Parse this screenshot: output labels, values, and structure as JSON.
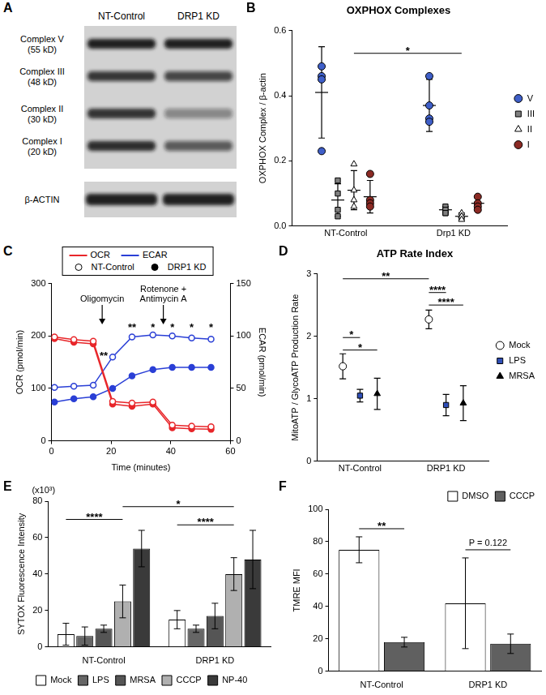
{
  "blot": {
    "panel": "A",
    "lanes": [
      "NT-Control",
      "DRP1 KD"
    ],
    "bands": [
      {
        "label": "Complex V",
        "size": "(55 kD)"
      },
      {
        "label": "Complex III",
        "size": "(48 kD)"
      },
      {
        "label": "Complex II",
        "size": "(30 kD)"
      },
      {
        "label": "Complex I",
        "size": "(20 kD)"
      }
    ],
    "loading_control": "β-ACTIN"
  },
  "chart_data": [
    {
      "panel": "B",
      "type": "dot",
      "title": "OXPHOX Complexes",
      "categories": [
        "NT-Control",
        "Drp1 KD"
      ],
      "y_label": "OXPHOX Complex / β-actin",
      "ylim": [
        0,
        0.6
      ],
      "yticks": [
        {
          "value": 0,
          "label": "0.0"
        },
        0.2,
        0.4,
        0.6
      ],
      "grid": false,
      "legend": "right",
      "series": [
        {
          "name": "V",
          "color": "#3f5fc8",
          "marker": "circle",
          "values": [
            [
              0.49,
              0.46,
              0.45,
              0.23
            ],
            [
              0.46,
              0.37,
              0.33,
              0.32
            ]
          ],
          "means": [
            0.41,
            0.37
          ],
          "errors": [
            0.14,
            0.08
          ]
        },
        {
          "name": "III",
          "color": "#7f7f7f",
          "marker": "square",
          "values": [
            [
              0.14,
              0.1,
              0.05,
              0.03
            ],
            [
              0.06,
              0.05,
              0.04,
              0.04
            ]
          ],
          "means": [
            0.08,
            0.05
          ],
          "errors": [
            0.05,
            0.01
          ]
        },
        {
          "name": "II",
          "color": "#ffffff",
          "marker": "triangle",
          "values": [
            [
              0.19,
              0.11,
              0.08,
              0.06
            ],
            [
              0.04,
              0.03,
              0.03,
              0.02
            ]
          ],
          "means": [
            0.11,
            0.03
          ],
          "errors": [
            0.06,
            0.01
          ]
        },
        {
          "name": "I",
          "color": "#8b2a24",
          "marker": "circle",
          "values": [
            [
              0.16,
              0.08,
              0.07,
              0.06
            ],
            [
              0.09,
              0.07,
              0.06,
              0.05
            ]
          ],
          "means": [
            0.09,
            0.07
          ],
          "errors": [
            0.05,
            0.02
          ]
        }
      ],
      "annotations": [
        {
          "text": "*",
          "from": [
            "NT-Control",
            "II"
          ],
          "to": [
            "Drp1 KD",
            "II"
          ],
          "y": 0.53
        }
      ]
    },
    {
      "panel": "C",
      "type": "line",
      "x_label": "Time (minutes)",
      "y_label": "OCR (pmol/min)",
      "y2_label": "ECAR (pmol/min)",
      "x": [
        1,
        7.5,
        14,
        20.5,
        27,
        34,
        40.5,
        47,
        53.5
      ],
      "xlim": [
        0,
        60
      ],
      "xticks": [
        0,
        20,
        40,
        60
      ],
      "ylim": [
        0,
        300
      ],
      "yticks": [
        0,
        100,
        200,
        300
      ],
      "y2lim": [
        0,
        150
      ],
      "y2ticks": [
        0,
        50,
        100,
        150
      ],
      "grid": false,
      "legend": "top",
      "series": [
        {
          "name": "OCR",
          "group": "NT-Control",
          "color": "#e8262a",
          "marker": "open_circle",
          "values": [
            198,
            193,
            190,
            75,
            72,
            74,
            30,
            28,
            27
          ]
        },
        {
          "name": "OCR",
          "group": "DRP1 KD",
          "color": "#e8262a",
          "marker": "circle",
          "values": [
            195,
            188,
            185,
            70,
            66,
            70,
            25,
            23,
            22
          ]
        },
        {
          "name": "ECAR",
          "group": "NT-Control",
          "color": "#2a3fd6",
          "marker": "open_circle",
          "axis": "y2",
          "values": [
            51,
            52,
            53,
            80,
            99,
            101,
            100,
            98,
            97
          ]
        },
        {
          "name": "ECAR",
          "group": "DRP1 KD",
          "color": "#2a3fd6",
          "marker": "circle",
          "axis": "y2",
          "values": [
            37,
            40,
            42,
            50,
            62,
            68,
            70,
            70,
            70
          ]
        }
      ],
      "annotations": [
        {
          "text": "Oligomycin",
          "x": 17,
          "y": 222,
          "arrow": true
        },
        {
          "text": [
            "Rotenone +",
            "Antimycin A"
          ],
          "x": 37.5,
          "y": 222,
          "arrow": true
        },
        {
          "text": "**",
          "x": 17.5,
          "y": 158
        },
        {
          "text": "**",
          "x": 27,
          "y": 212
        },
        {
          "text": "*",
          "x": 34,
          "y": 212
        },
        {
          "text": "*",
          "x": 40.5,
          "y": 212
        },
        {
          "text": "*",
          "x": 47,
          "y": 212
        },
        {
          "text": "*",
          "x": 53.5,
          "y": 212
        }
      ]
    },
    {
      "panel": "D",
      "type": "dot",
      "title": "ATP Rate Index",
      "categories": [
        "NT-Control",
        "DRP1 KD"
      ],
      "y_label": "MitoATP / GlycoATP Production Rate",
      "ylim": [
        0,
        3
      ],
      "yticks": [
        0,
        1,
        2,
        3
      ],
      "grid": false,
      "legend": "right",
      "series": [
        {
          "name": "Mock",
          "color": "#ffffff",
          "marker": "circle",
          "values": [
            1.52,
            2.27
          ],
          "errors": [
            0.2,
            0.15
          ]
        },
        {
          "name": "LPS",
          "color": "#2f4fb8",
          "marker": "square",
          "values": [
            1.05,
            0.9
          ],
          "errors": [
            0.1,
            0.17
          ]
        },
        {
          "name": "MRSA",
          "color": "#000000",
          "marker": "triangle",
          "values": [
            1.08,
            0.93
          ],
          "errors": [
            0.25,
            0.28
          ]
        }
      ],
      "annotations": [
        {
          "text": "*",
          "from": [
            "NT-Control",
            "Mock"
          ],
          "to": [
            "NT-Control",
            "LPS"
          ],
          "y": 1.98
        },
        {
          "text": "*",
          "from": [
            "NT-Control",
            "Mock"
          ],
          "to": [
            "NT-Control",
            "MRSA"
          ],
          "y": 1.78
        },
        {
          "text": "**",
          "from": [
            "NT-Control",
            "Mock"
          ],
          "to": [
            "DRP1 KD",
            "Mock"
          ],
          "y": 2.92
        },
        {
          "text": "****",
          "from": [
            "DRP1 KD",
            "Mock"
          ],
          "to": [
            "DRP1 KD",
            "LPS"
          ],
          "y": 2.7
        },
        {
          "text": "****",
          "from": [
            "DRP1 KD",
            "Mock"
          ],
          "to": [
            "DRP1 KD",
            "MRSA"
          ],
          "y": 2.5
        }
      ]
    },
    {
      "panel": "E",
      "type": "bar",
      "categories": [
        "NT-Control",
        "DRP1 KD"
      ],
      "y_label": "SYTOX Fluorescence Intensity",
      "y_unit": "(x10³)",
      "ylim": [
        0,
        80
      ],
      "yticks": [
        0,
        20,
        40,
        60,
        80
      ],
      "grid": false,
      "legend": "bottom",
      "series": [
        {
          "name": "Mock",
          "color": "#ffffff",
          "values": [
            7,
            15
          ],
          "errors": [
            6,
            5
          ]
        },
        {
          "name": "LPS",
          "color": "#666666",
          "values": [
            6,
            10
          ],
          "errors": [
            5,
            2
          ]
        },
        {
          "name": "MRSA",
          "color": "#555555",
          "values": [
            10,
            17
          ],
          "errors": [
            2,
            7
          ]
        },
        {
          "name": "CCCP",
          "color": "#b0b0b0",
          "values": [
            25,
            40
          ],
          "errors": [
            9,
            9
          ]
        },
        {
          "name": "NP-40",
          "color": "#3a3a3a",
          "values": [
            54,
            48
          ],
          "errors": [
            10,
            16
          ]
        }
      ],
      "annotations": [
        {
          "text": "****",
          "from": [
            "NT-Control",
            "Mock"
          ],
          "to": [
            "NT-Control",
            "CCCP"
          ],
          "y": 70
        },
        {
          "text": "*",
          "from": [
            "NT-Control",
            "CCCP"
          ],
          "to": [
            "DRP1 KD",
            "CCCP"
          ],
          "y": 77
        },
        {
          "text": "****",
          "from": [
            "DRP1 KD",
            "Mock"
          ],
          "to": [
            "DRP1 KD",
            "CCCP"
          ],
          "y": 67
        }
      ]
    },
    {
      "panel": "F",
      "type": "bar",
      "categories": [
        "NT-Control",
        "DRP1 KD"
      ],
      "y_label": "TMRE MFI",
      "ylim": [
        0,
        100
      ],
      "yticks": [
        0,
        20,
        40,
        60,
        80,
        100
      ],
      "grid": false,
      "legend": "top",
      "series": [
        {
          "name": "DMSO",
          "color": "#ffffff",
          "values": [
            75,
            42
          ],
          "errors": [
            8,
            28
          ]
        },
        {
          "name": "CCCP",
          "color": "#606060",
          "values": [
            18,
            17
          ],
          "errors": [
            3,
            6
          ]
        }
      ],
      "annotations": [
        {
          "text": "**",
          "from": [
            "NT-Control",
            "DMSO"
          ],
          "to": [
            "NT-Control",
            "CCCP"
          ],
          "y": 88
        },
        {
          "text": "P = 0.122",
          "from": [
            "DRP1 KD",
            "DMSO"
          ],
          "to": [
            "DRP1 KD",
            "CCCP"
          ],
          "y": 75
        }
      ]
    }
  ]
}
